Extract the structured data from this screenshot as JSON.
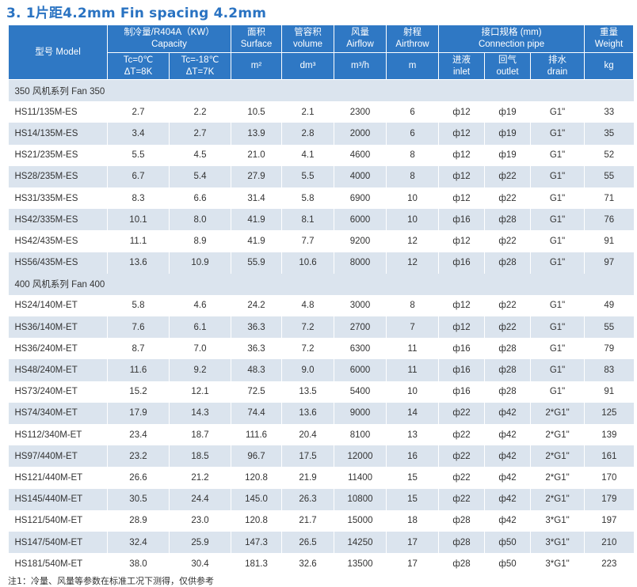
{
  "page": {
    "title": "3. 1片距4.2mm  Fin spacing 4.2mm",
    "footnote": "注1：冷量、风量等参数在标准工况下测得，仅供参考"
  },
  "colors": {
    "header_bg": "#2f78c4",
    "row_alt_bg": "#dbe4ee",
    "title": "#2a73c2"
  },
  "header": {
    "model": "型号 Model",
    "capacity": "制冷量/R404A（KW）\nCapacity",
    "tc0": "Tc=0℃\nΔT=8K",
    "tc18": "Tc=-18℃\nΔT=7K",
    "surface": "面积\nSurface",
    "surface_unit": "m²",
    "volume": "管容积\nvolume",
    "volume_unit": "dm³",
    "airflow": "风量\nAirflow",
    "airflow_unit": "m³/h",
    "airthrow": "射程\nAirthrow",
    "airthrow_unit": "m",
    "connection": "接口规格 (mm)\nConnection pipe",
    "inlet": "进液\ninlet",
    "outlet": "回气\noutlet",
    "drain": "排水\ndrain",
    "weight": "重量\nWeight",
    "weight_unit": "kg"
  },
  "sections": [
    {
      "label": "350 风机系列    Fan 350",
      "rows": [
        [
          "HS11/135M-ES",
          "2.7",
          "2.2",
          "10.5",
          "2.1",
          "2300",
          "6",
          "ф12",
          "ф19",
          "G1\"",
          "33"
        ],
        [
          "HS14/135M-ES",
          "3.4",
          "2.7",
          "13.9",
          "2.8",
          "2000",
          "6",
          "ф12",
          "ф19",
          "G1\"",
          "35"
        ],
        [
          "HS21/235M-ES",
          "5.5",
          "4.5",
          "21.0",
          "4.1",
          "4600",
          "8",
          "ф12",
          "ф19",
          "G1\"",
          "52"
        ],
        [
          "HS28/235M-ES",
          "6.7",
          "5.4",
          "27.9",
          "5.5",
          "4000",
          "8",
          "ф12",
          "ф22",
          "G1\"",
          "55"
        ],
        [
          "HS31/335M-ES",
          "8.3",
          "6.6",
          "31.4",
          "5.8",
          "6900",
          "10",
          "ф12",
          "ф22",
          "G1\"",
          "71"
        ],
        [
          "HS42/335M-ES",
          "10.1",
          "8.0",
          "41.9",
          "8.1",
          "6000",
          "10",
          "ф16",
          "ф28",
          "G1\"",
          "76"
        ],
        [
          "HS42/435M-ES",
          "11.1",
          "8.9",
          "41.9",
          "7.7",
          "9200",
          "12",
          "ф12",
          "ф22",
          "G1\"",
          "91"
        ],
        [
          "HS56/435M-ES",
          "13.6",
          "10.9",
          "55.9",
          "10.6",
          "8000",
          "12",
          "ф16",
          "ф28",
          "G1\"",
          "97"
        ]
      ]
    },
    {
      "label": "400 风机系列    Fan 400",
      "rows": [
        [
          "HS24/140M-ET",
          "5.8",
          "4.6",
          "24.2",
          "4.8",
          "3000",
          "8",
          "ф12",
          "ф22",
          "G1\"",
          "49"
        ],
        [
          "HS36/140M-ET",
          "7.6",
          "6.1",
          "36.3",
          "7.2",
          "2700",
          "7",
          "ф12",
          "ф22",
          "G1\"",
          "55"
        ],
        [
          "HS36/240M-ET",
          "8.7",
          "7.0",
          "36.3",
          "7.2",
          "6300",
          "11",
          "ф16",
          "ф28",
          "G1\"",
          "79"
        ],
        [
          "HS48/240M-ET",
          "11.6",
          "9.2",
          "48.3",
          "9.0",
          "6000",
          "11",
          "ф16",
          "ф28",
          "G1\"",
          "83"
        ],
        [
          "HS73/240M-ET",
          "15.2",
          "12.1",
          "72.5",
          "13.5",
          "5400",
          "10",
          "ф16",
          "ф28",
          "G1\"",
          "91"
        ],
        [
          "HS74/340M-ET",
          "17.9",
          "14.3",
          "74.4",
          "13.6",
          "9000",
          "14",
          "ф22",
          "ф42",
          "2*G1\"",
          "125"
        ],
        [
          "HS112/340M-ET",
          "23.4",
          "18.7",
          "111.6",
          "20.4",
          "8100",
          "13",
          "ф22",
          "ф42",
          "2*G1\"",
          "139"
        ],
        [
          "HS97/440M-ET",
          "23.2",
          "18.5",
          "96.7",
          "17.5",
          "12000",
          "16",
          "ф22",
          "ф42",
          "2*G1\"",
          "161"
        ],
        [
          "HS121/440M-ET",
          "26.6",
          "21.2",
          "120.8",
          "21.9",
          "11400",
          "15",
          "ф22",
          "ф42",
          "2*G1\"",
          "170"
        ],
        [
          "HS145/440M-ET",
          "30.5",
          "24.4",
          "145.0",
          "26.3",
          "10800",
          "15",
          "ф22",
          "ф42",
          "2*G1\"",
          "179"
        ],
        [
          "HS121/540M-ET",
          "28.9",
          "23.0",
          "120.8",
          "21.7",
          "15000",
          "18",
          "ф28",
          "ф42",
          "3*G1\"",
          "197"
        ],
        [
          "HS147/540M-ET",
          "32.4",
          "25.9",
          "147.3",
          "26.5",
          "14250",
          "17",
          "ф28",
          "ф50",
          "3*G1\"",
          "210"
        ],
        [
          "HS181/540M-ET",
          "38.0",
          "30.4",
          "181.3",
          "32.6",
          "13500",
          "17",
          "ф28",
          "ф50",
          "3*G1\"",
          "223"
        ]
      ]
    }
  ]
}
